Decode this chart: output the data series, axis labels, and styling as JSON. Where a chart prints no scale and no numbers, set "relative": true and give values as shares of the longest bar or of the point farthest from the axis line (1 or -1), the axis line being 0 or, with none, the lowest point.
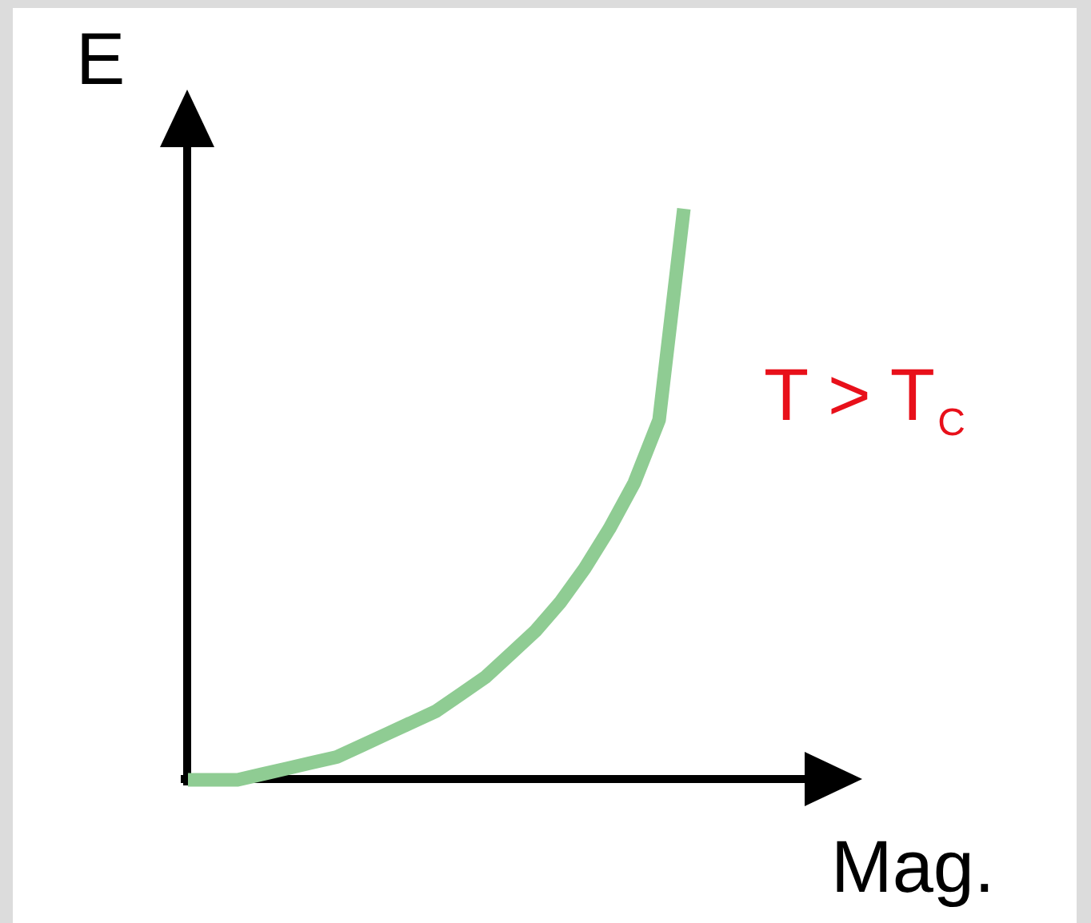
{
  "chart_data": {
    "type": "line",
    "xlabel": "Mag.",
    "ylabel": "E",
    "relative": true,
    "categories": [
      null,
      null,
      null,
      null,
      null,
      null,
      null,
      null,
      null,
      null,
      null,
      null,
      null,
      null,
      null,
      null,
      null,
      null,
      null,
      null,
      null
    ],
    "values": [
      0,
      0,
      0,
      0.01,
      0.02,
      0.03,
      0.04,
      0.06,
      0.08,
      0.1,
      0.12,
      0.15,
      0.18,
      0.22,
      0.26,
      0.31,
      0.37,
      0.44,
      0.52,
      0.63,
      1
    ],
    "color": "#8fcc93",
    "annotations": [
      "T > T$_{C}$"
    ]
  }
}
